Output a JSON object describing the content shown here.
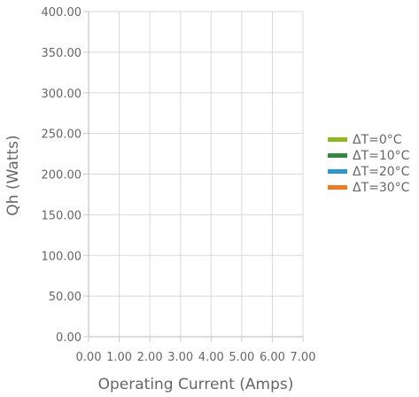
{
  "chart_data": {
    "type": "line",
    "xlabel": "Operating Current (Amps)",
    "ylabel": "Qh (Watts)",
    "x_ticks": [
      "0.00",
      "1.00",
      "2.00",
      "3.00",
      "4.00",
      "5.00",
      "6.00",
      "7.00"
    ],
    "y_ticks": [
      "0.00",
      "50.00",
      "100.00",
      "150.00",
      "200.00",
      "250.00",
      "300.00",
      "350.00",
      "400.00"
    ],
    "xlim": [
      0,
      7
    ],
    "ylim": [
      0,
      400
    ],
    "grid": true,
    "legend_position": "right",
    "series": [
      {
        "name": "ΔT=0°C",
        "color": "#8db81e",
        "x": [],
        "y": []
      },
      {
        "name": "ΔT=10°C",
        "color": "#2e8b3e",
        "x": [],
        "y": []
      },
      {
        "name": "ΔT=20°C",
        "color": "#2e96d1",
        "x": [],
        "y": []
      },
      {
        "name": "ΔT=30°C",
        "color": "#f07a22",
        "x": [],
        "y": []
      }
    ]
  }
}
